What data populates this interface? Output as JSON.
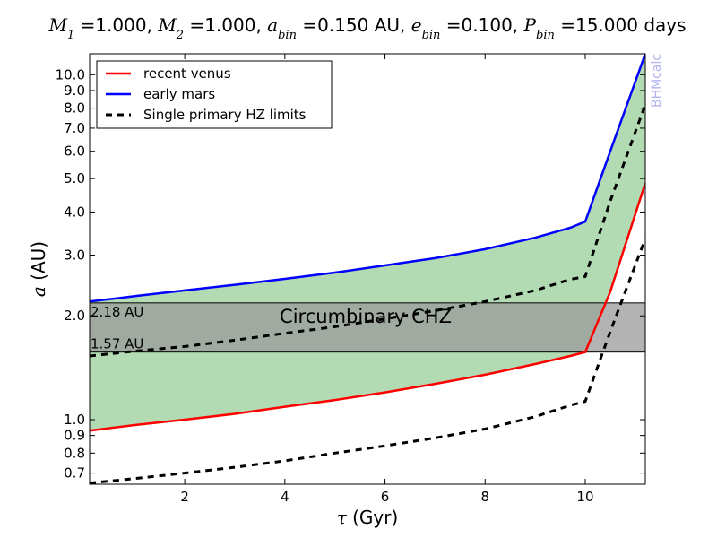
{
  "chart_data": {
    "type": "line",
    "title_parts": [
      {
        "var": "M",
        "sub": "1",
        "text": " =1.000, "
      },
      {
        "var": "M",
        "sub": "2",
        "text": " =1.000, "
      },
      {
        "var": "a",
        "sub": "bin",
        "text": " =0.150 AU, "
      },
      {
        "var": "e",
        "sub": "bin",
        "text": " =0.100, "
      },
      {
        "var": "P",
        "sub": "bin",
        "text": " =15.000 days"
      }
    ],
    "xlabel_var": "τ",
    "xlabel_unit": " (Gyr)",
    "ylabel_var": "a",
    "ylabel_unit": " (AU)",
    "xlim": [
      0.1,
      11.2
    ],
    "ylim": [
      0.65,
      11.5
    ],
    "yscale": "log",
    "xticks": [
      2,
      4,
      6,
      8,
      10
    ],
    "xtick_labels": [
      "2",
      "4",
      "6",
      "8",
      "10"
    ],
    "yticks": [
      0.7,
      0.8,
      0.9,
      1.0,
      2.0,
      3.0,
      4.0,
      5.0,
      6.0,
      7.0,
      8.0,
      9.0,
      10.0
    ],
    "ytick_labels": [
      "0.7",
      "0.8",
      "0.9",
      "1.0",
      "2.0",
      "3.0",
      "4.0",
      "5.0",
      "6.0",
      "7.0",
      "8.0",
      "9.0",
      "10.0"
    ],
    "grid": false,
    "legend_position": "top-left",
    "series": [
      {
        "name": "recent venus",
        "color": "#ff0000",
        "style": "solid",
        "x": [
          0.1,
          1,
          2,
          3,
          4,
          5,
          6,
          7,
          8,
          9,
          9.7,
          10,
          10.5,
          11.2
        ],
        "y": [
          0.93,
          0.965,
          1.0,
          1.04,
          1.09,
          1.14,
          1.2,
          1.27,
          1.35,
          1.45,
          1.53,
          1.57,
          2.35,
          4.85
        ]
      },
      {
        "name": "early mars",
        "color": "#0000ff",
        "style": "solid",
        "x": [
          0.1,
          1,
          2,
          3,
          4,
          5,
          6,
          7,
          8,
          9,
          9.7,
          10,
          10.5,
          11.2
        ],
        "y": [
          2.2,
          2.28,
          2.37,
          2.46,
          2.56,
          2.67,
          2.8,
          2.94,
          3.12,
          3.37,
          3.6,
          3.75,
          6.0,
          11.5
        ]
      },
      {
        "name": "Single primary HZ limits",
        "color": "#000000",
        "style": "dashed",
        "x": [
          0.1,
          1,
          2,
          3,
          4,
          5,
          6,
          7,
          8,
          9,
          9.7,
          10,
          10.5,
          11.2
        ],
        "y": [
          1.53,
          1.58,
          1.63,
          1.7,
          1.78,
          1.86,
          1.96,
          2.07,
          2.2,
          2.37,
          2.55,
          2.6,
          4.3,
          8.2
        ]
      },
      {
        "name": "",
        "legend": false,
        "color": "#000000",
        "style": "dashed",
        "x": [
          0.1,
          1,
          2,
          3,
          4,
          5,
          6,
          7,
          8,
          9,
          9.7,
          10,
          10.5,
          11.2
        ],
        "y": [
          0.655,
          0.675,
          0.7,
          0.728,
          0.76,
          0.8,
          0.84,
          0.885,
          0.94,
          1.02,
          1.1,
          1.13,
          1.8,
          3.35
        ]
      }
    ],
    "fill_between": {
      "lower": "recent venus",
      "upper": "early mars",
      "color": "#b3dbb3"
    },
    "band": {
      "y_low": 1.57,
      "y_high": 2.18,
      "label": "Circumbinary CHZ",
      "low_label": "1.57 AU",
      "high_label": "2.18 AU",
      "color": "#999999"
    },
    "watermark": "BHMcalc",
    "watermark_color": "#b3b3f0"
  }
}
